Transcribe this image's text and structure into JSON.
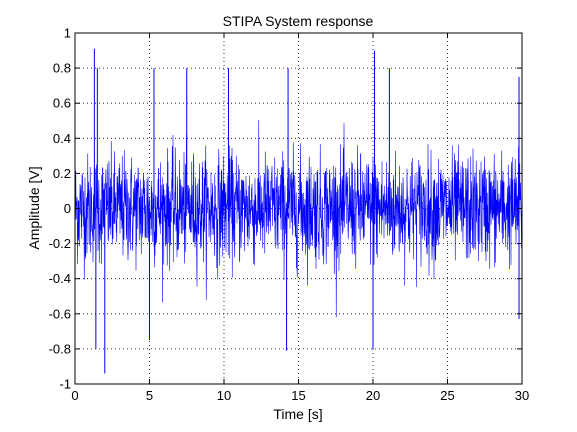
{
  "chart_data": {
    "type": "line",
    "title": "STIPA System response",
    "xlabel": "Time [s]",
    "ylabel": "Amplitude [V]",
    "xlim": [
      0,
      30
    ],
    "ylim": [
      -1,
      1
    ],
    "x_ticks": [
      0,
      5,
      10,
      15,
      20,
      25,
      30
    ],
    "y_ticks": [
      -1,
      -0.8,
      -0.6,
      -0.4,
      -0.2,
      0,
      0.2,
      0.4,
      0.6,
      0.8,
      1
    ],
    "x_tick_labels": [
      "0",
      "5",
      "10",
      "15",
      "20",
      "25",
      "30"
    ],
    "y_tick_labels": [
      "-1",
      "-0.8",
      "-0.6",
      "-0.4",
      "-0.2",
      "0",
      "0.2",
      "0.4",
      "0.6",
      "0.8",
      "1"
    ],
    "grid": true,
    "grid_style": "dotted",
    "line_color": "#0000ff",
    "series": [
      {
        "x_start": 0,
        "x_end": 30,
        "typical_range": [
          -0.4,
          0.4
        ],
        "peaks": [
          {
            "x": 1.3,
            "y": 0.91
          },
          {
            "x": 1.5,
            "y": 0.8
          },
          {
            "x": 5.3,
            "y": 0.8
          },
          {
            "x": 7.5,
            "y": 0.8
          },
          {
            "x": 10.3,
            "y": 0.8
          },
          {
            "x": 14.3,
            "y": 0.8
          },
          {
            "x": 20.1,
            "y": 0.9
          },
          {
            "x": 21.1,
            "y": 0.8
          },
          {
            "x": 29.8,
            "y": 0.75
          }
        ],
        "troughs": [
          {
            "x": 2.0,
            "y": -0.94
          },
          {
            "x": 1.4,
            "y": -0.8
          },
          {
            "x": 5.0,
            "y": -0.75
          },
          {
            "x": 14.2,
            "y": -0.81
          },
          {
            "x": 20.0,
            "y": -0.8
          },
          {
            "x": 29.8,
            "y": -0.63
          }
        ]
      }
    ]
  }
}
